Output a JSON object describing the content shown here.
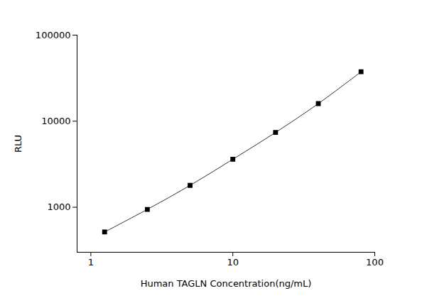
{
  "chart_data": {
    "type": "line",
    "x_label": "Human TAGLN Concentration(ng/mL)",
    "y_label": "RLU",
    "x": [
      1.25,
      2.5,
      5,
      10,
      20,
      40,
      80
    ],
    "values": [
      516,
      945,
      1795,
      3610,
      7400,
      16000,
      37500
    ],
    "color": "#000000",
    "marker": "square",
    "line_style": "solid",
    "log": true,
    "grid": false,
    "xlim": [
      0.8,
      100
    ],
    "xticks": [
      1,
      10,
      100
    ],
    "ylim": [
      300,
      100000
    ],
    "yticks": [
      1000,
      10000,
      100000
    ]
  }
}
